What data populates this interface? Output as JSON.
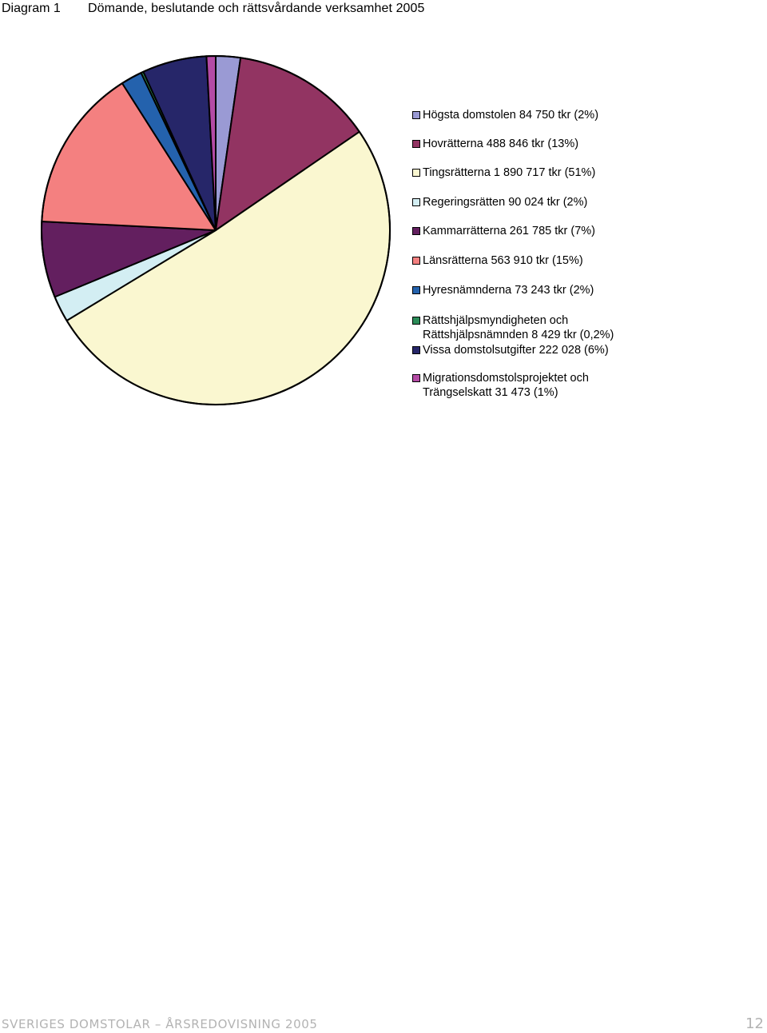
{
  "header": {
    "diagram_label": "Diagram 1",
    "title": "Dömande, beslutande och rättsvårdande verksamhet 2005"
  },
  "chart_data": {
    "type": "pie",
    "title": "Dömande, beslutande och rättsvårdande verksamhet 2005",
    "legend_position": "right",
    "slices": [
      {
        "label": "Högsta domstolen 84 750 tkr (2%)",
        "value": 84750,
        "color": "#9a9ad4"
      },
      {
        "label": "Hovrätterna 488 846 tkr (13%)",
        "value": 488846,
        "color": "#923462"
      },
      {
        "label": "Tingsrätterna 1 890 717 tkr (51%)",
        "value": 1890717,
        "color": "#faf7d0"
      },
      {
        "label": "Regeringsrätten 90 024 tkr (2%)",
        "value": 90024,
        "color": "#d3eef3"
      },
      {
        "label": "Kammarrätterna 261 785 tkr (7%)",
        "value": 261785,
        "color": "#631f5f"
      },
      {
        "label": "Länsrätterna 563 910 tkr (15%)",
        "value": 563910,
        "color": "#f48080"
      },
      {
        "label": "Hyresnämnderna 73 243 tkr (2%)",
        "value": 73243,
        "color": "#2462ad"
      },
      {
        "label": "Rättshjälpsmyndigheten och\nRättshjälpsnämnden 8 429 tkr (0,2%)",
        "value": 8429,
        "color": "#2b8c58"
      },
      {
        "label": "Vissa domstolsutgifter 222 028 (6%)",
        "value": 222028,
        "color": "#262669"
      },
      {
        "label": "Migrationsdomstolsprojektet och\nTrängselskatt 31 473 (1%)",
        "value": 31473,
        "color": "#b44ba5"
      }
    ]
  },
  "footer": {
    "left": "SVERIGES DOMSTOLAR – ÅRSREDOVISNING 2005",
    "page_number": "12"
  }
}
